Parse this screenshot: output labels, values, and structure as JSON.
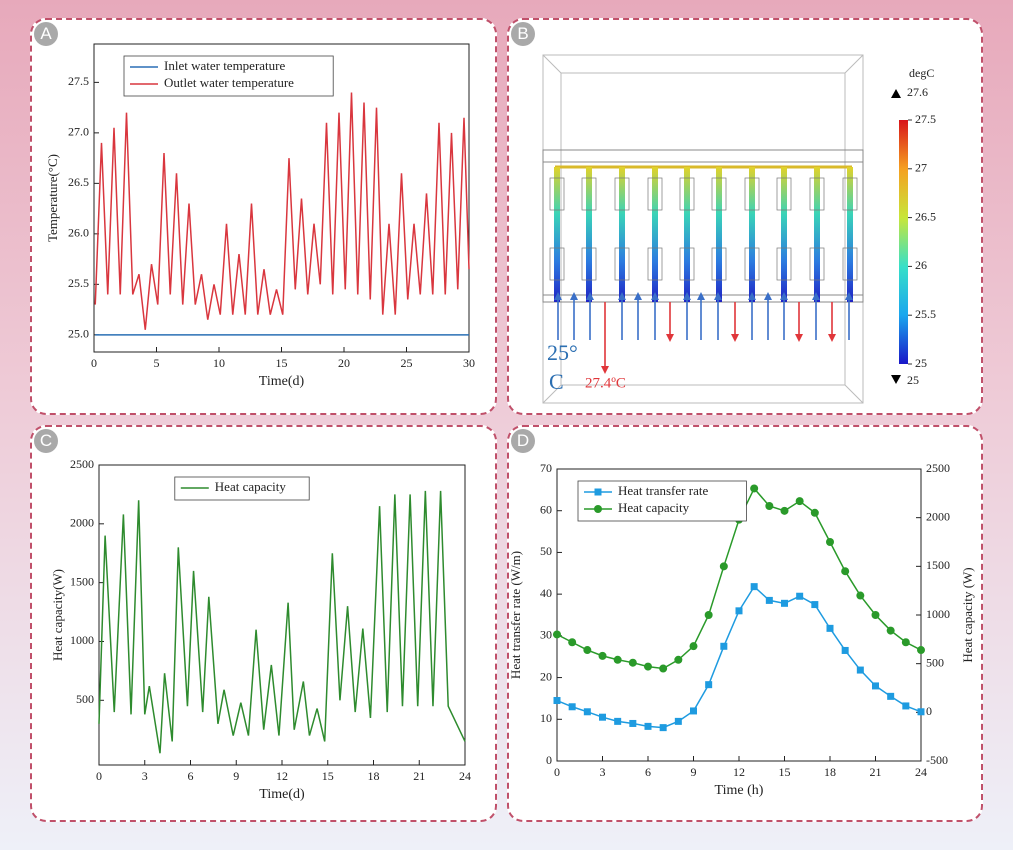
{
  "chart_data": [
    {
      "type": "line",
      "panel": "A",
      "xlabel": "Time(d)",
      "ylabel": "Temperature(°C)",
      "xlim": [
        0,
        30
      ],
      "xticks": [
        0,
        5,
        10,
        15,
        20,
        25,
        30
      ],
      "ylim": [
        24.83,
        27.88
      ],
      "yticks": [
        {
          "value": 25,
          "label": "25.0"
        },
        25.5,
        {
          "value": 26,
          "label": "26.0"
        },
        26.5,
        {
          "value": 27,
          "label": "27.0"
        },
        27.5
      ],
      "legend": "upper left",
      "x": [
        0.1,
        0.6,
        1.1,
        1.6,
        2.1,
        2.6,
        3.1,
        3.6,
        4.1,
        4.6,
        5.1,
        5.6,
        6.1,
        6.6,
        7.1,
        7.6,
        8.1,
        8.6,
        9.1,
        9.6,
        10.1,
        10.6,
        11.1,
        11.6,
        12.1,
        12.6,
        13.1,
        13.6,
        14.1,
        14.6,
        15.1,
        15.6,
        16.1,
        16.6,
        17.1,
        17.6,
        18.1,
        18.6,
        19.1,
        19.6,
        20.1,
        20.6,
        21.1,
        21.6,
        22.1,
        22.6,
        23.1,
        23.6,
        24.1,
        24.6,
        25.1,
        25.6,
        26.1,
        26.6,
        27.1,
        27.6,
        28.1,
        28.6,
        29.1,
        29.6,
        30
      ],
      "series": [
        {
          "name": "Inlet water temperature",
          "color": "#2a6fb5",
          "values": [
            25,
            25,
            25,
            25,
            25,
            25,
            25,
            25,
            25,
            25,
            25,
            25,
            25,
            25,
            25,
            25,
            25,
            25,
            25,
            25,
            25,
            25,
            25,
            25,
            25,
            25,
            25,
            25,
            25,
            25,
            25,
            25,
            25,
            25,
            25,
            25,
            25,
            25,
            25,
            25,
            25,
            25,
            25,
            25,
            25,
            25,
            25,
            25,
            25,
            25,
            25,
            25,
            25,
            25,
            25,
            25,
            25,
            25,
            25,
            25,
            25
          ]
        },
        {
          "name": "Outlet water temperature",
          "color": "#d9363e",
          "values": [
            25.3,
            26.9,
            25.4,
            27.05,
            25.4,
            27.2,
            25.4,
            25.6,
            25.05,
            25.7,
            25.3,
            26.8,
            25.4,
            26.6,
            25.3,
            26.3,
            25.3,
            25.6,
            25.15,
            25.5,
            25.2,
            26.1,
            25.2,
            25.8,
            25.2,
            26.3,
            25.2,
            25.65,
            25.2,
            25.45,
            25.2,
            26.75,
            25.45,
            26.35,
            25.4,
            26.1,
            25.5,
            27.1,
            25.4,
            27.2,
            25.45,
            27.4,
            25.4,
            27.3,
            25.35,
            27.25,
            25.2,
            26.1,
            25.2,
            26.6,
            25.35,
            26.1,
            25.4,
            26.4,
            25.4,
            27.1,
            25.4,
            27.0,
            25.45,
            27.15,
            25.65
          ]
        }
      ]
    },
    {
      "type": "colormap",
      "panel": "B",
      "unit": "degC",
      "max_label": 27.6,
      "min_label": 25,
      "clim": [
        25,
        27.5
      ],
      "cticks": [
        25,
        25.5,
        26,
        26.5,
        27,
        27.5
      ],
      "inlet_label": [
        "25°",
        "C"
      ],
      "outlet_label": "27.4ºC"
    },
    {
      "type": "line",
      "panel": "C",
      "xlabel": "Time(d)",
      "ylabel": "Heat capacity(W)",
      "xlim": [
        0,
        24
      ],
      "xticks": [
        0,
        3,
        6,
        9,
        12,
        15,
        18,
        21,
        24
      ],
      "ylim": [
        -50,
        2500
      ],
      "yticks": [
        500,
        1000,
        1500,
        2000,
        2500
      ],
      "legend": "upper center",
      "x": [
        0,
        0.4,
        1.0,
        1.6,
        2.1,
        2.6,
        3.0,
        3.3,
        4.0,
        4.3,
        4.8,
        5.2,
        5.8,
        6.2,
        6.8,
        7.2,
        7.8,
        8.2,
        8.8,
        9.3,
        9.8,
        10.3,
        10.8,
        11.3,
        11.8,
        12.4,
        12.8,
        13.4,
        13.8,
        14.3,
        14.8,
        15.3,
        15.8,
        16.3,
        16.8,
        17.3,
        17.8,
        18.4,
        18.9,
        19.4,
        19.9,
        20.4,
        20.9,
        21.4,
        21.9,
        22.4,
        22.9,
        24
      ],
      "series": [
        {
          "name": "Heat capacity",
          "color": "#2e8b2e",
          "values": [
            300,
            1900,
            400,
            2080,
            380,
            2200,
            380,
            620,
            50,
            730,
            150,
            1800,
            450,
            1600,
            400,
            1380,
            300,
            590,
            200,
            480,
            200,
            1100,
            250,
            800,
            200,
            1330,
            250,
            660,
            200,
            430,
            150,
            1750,
            500,
            1300,
            400,
            1110,
            350,
            2150,
            400,
            2250,
            450,
            2250,
            450,
            2280,
            450,
            2280,
            450,
            150
          ]
        }
      ]
    },
    {
      "type": "line",
      "panel": "D",
      "xlabel": "Time (h)",
      "ylabel": "Heat transfer rate (W/m)",
      "y2label": "Heat capacity (W)",
      "xlim": [
        0,
        24
      ],
      "xticks": [
        0,
        3,
        6,
        9,
        12,
        15,
        18,
        21,
        24
      ],
      "ylim": [
        0,
        70
      ],
      "yticks": [
        0,
        10,
        20,
        30,
        40,
        50,
        60,
        70
      ],
      "y2lim": [
        -500,
        2500
      ],
      "y2ticks": [
        -500,
        0,
        500,
        1000,
        1500,
        2000,
        2500
      ],
      "legend": "upper left",
      "x": [
        0,
        1,
        2,
        3,
        4,
        5,
        6,
        7,
        8,
        9,
        10,
        11,
        12,
        13,
        14,
        15,
        16,
        17,
        18,
        19,
        20,
        21,
        22,
        23,
        24
      ],
      "series": [
        {
          "name": "Heat transfer rate",
          "color": "#1e9be0",
          "marker": "square",
          "values": [
            14.5,
            13,
            11.8,
            10.5,
            9.5,
            9,
            8.3,
            8,
            9.5,
            12,
            18.3,
            27.5,
            36,
            41.8,
            38.5,
            37.8,
            39.5,
            37.5,
            31.8,
            26.5,
            21.8,
            18,
            15.5,
            13.2,
            11.8
          ]
        },
        {
          "name": "Heat capacity",
          "color": "#2a9a2a",
          "marker": "circle",
          "axis": "y2",
          "values": [
            800,
            720,
            640,
            580,
            540,
            510,
            470,
            450,
            540,
            680,
            1000,
            1500,
            1980,
            2300,
            2120,
            2070,
            2170,
            2050,
            1750,
            1450,
            1200,
            1000,
            840,
            720,
            640
          ]
        }
      ]
    }
  ]
}
